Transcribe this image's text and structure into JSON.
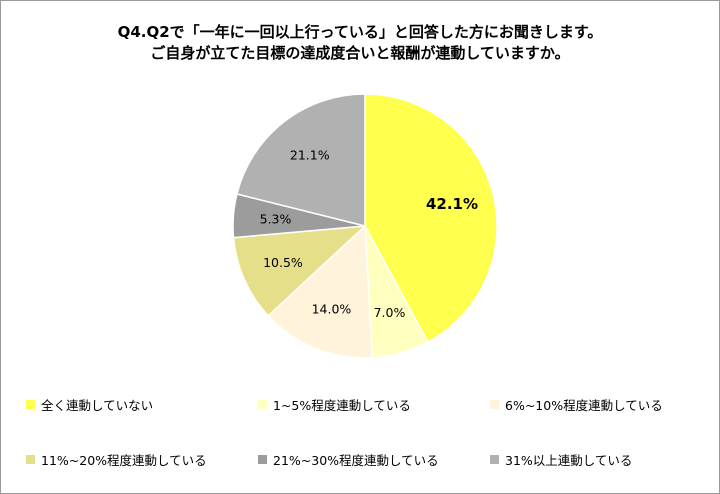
{
  "chart_data": {
    "type": "pie",
    "title_lines": [
      "Q4.Q2で「一年に一回以上行っている」と回答した方にお聞きします。",
      "ご自身が立てた目標の達成度合いと報酬が連動していますか。"
    ],
    "categories": [
      "全く連動していない",
      "1~5%程度連動している",
      "6%~10%程度連動している",
      "11%~20%程度連動している",
      "21%~30%程度連動している",
      "31%以上連動している"
    ],
    "values": [
      42.1,
      7.0,
      14.0,
      10.5,
      5.3,
      21.1
    ],
    "labels": [
      "42.1%",
      "7.0%",
      "14.0%",
      "10.5%",
      "5.3%",
      "21.1%"
    ],
    "colors": [
      "#ffff4d",
      "#ffffc0",
      "#fff3dc",
      "#e6df8a",
      "#9c9c9c",
      "#b1b1b1"
    ],
    "start_angle": "12 o'clock",
    "direction": "clockwise",
    "legend_position": "bottom"
  }
}
